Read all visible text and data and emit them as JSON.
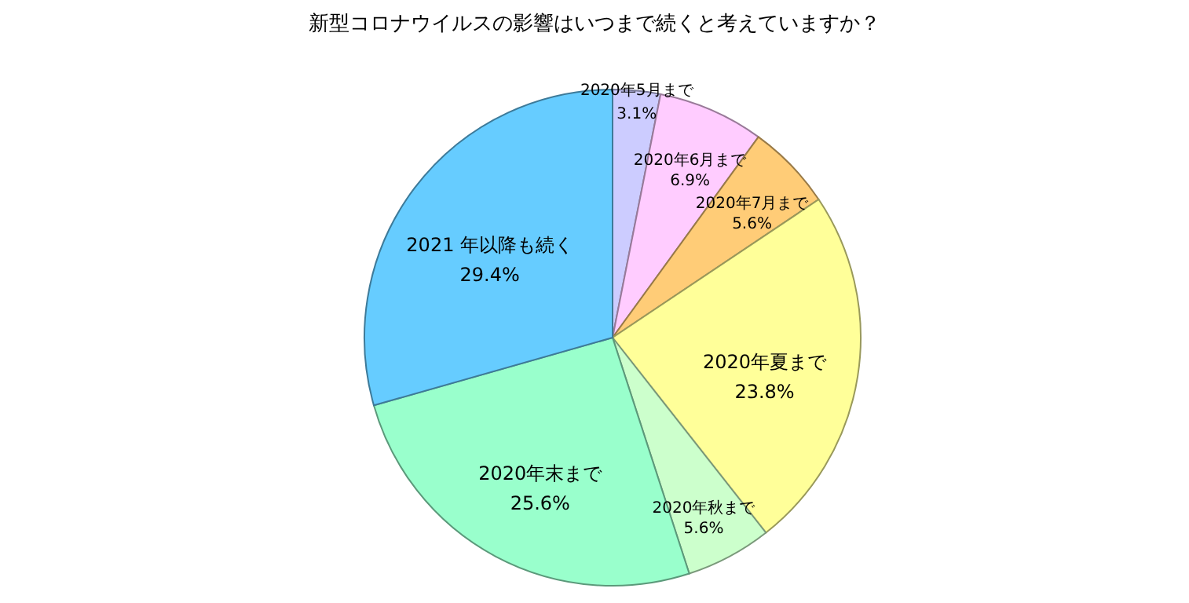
{
  "chart_data": {
    "type": "pie",
    "title": "新型コロナウイルスの影響はいつまで続くと考えていますか？",
    "categories": [
      "2020年5月まで",
      "2020年6月まで",
      "2020年7月まで",
      "2020年夏まで",
      "2020年秋まで",
      "2020年末まで",
      "2021 年以降も続く"
    ],
    "values": [
      3.1,
      6.9,
      5.6,
      23.8,
      5.6,
      25.6,
      29.4
    ],
    "value_labels": [
      "3.1%",
      "6.9%",
      "5.6%",
      "23.8%",
      "5.6%",
      "25.6%",
      "29.4%"
    ],
    "colors": [
      "#ccccff",
      "#ffccff",
      "#ffcc77",
      "#ffff99",
      "#ccffcc",
      "#99ffcc",
      "#66ccff"
    ],
    "legend": false
  }
}
